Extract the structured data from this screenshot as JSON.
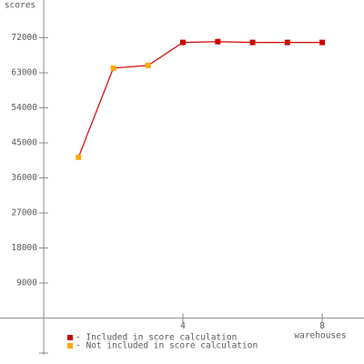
{
  "chart_data": {
    "type": "line",
    "x_label": "warehouses",
    "y_label": "scores",
    "x": [
      1,
      2,
      3,
      4,
      5,
      6,
      7,
      8
    ],
    "values": [
      41300,
      64200,
      64900,
      70800,
      71000,
      70800,
      70800,
      70800
    ],
    "line_color": "#cc0000",
    "included": [
      false,
      false,
      false,
      true,
      true,
      true,
      true,
      true
    ],
    "legend": [
      {
        "name": "- Included in score calculation",
        "color": "#cc0000"
      },
      {
        "name": "- Not included in score calculation",
        "color": "#ffaa00"
      }
    ],
    "xlim": [
      0,
      9.2
    ],
    "xticks": [
      4,
      8
    ],
    "ylim": [
      -9000,
      81000
    ],
    "yticks": [
      9000,
      18000,
      27000,
      36000,
      45000,
      54000,
      63000,
      72000
    ]
  }
}
